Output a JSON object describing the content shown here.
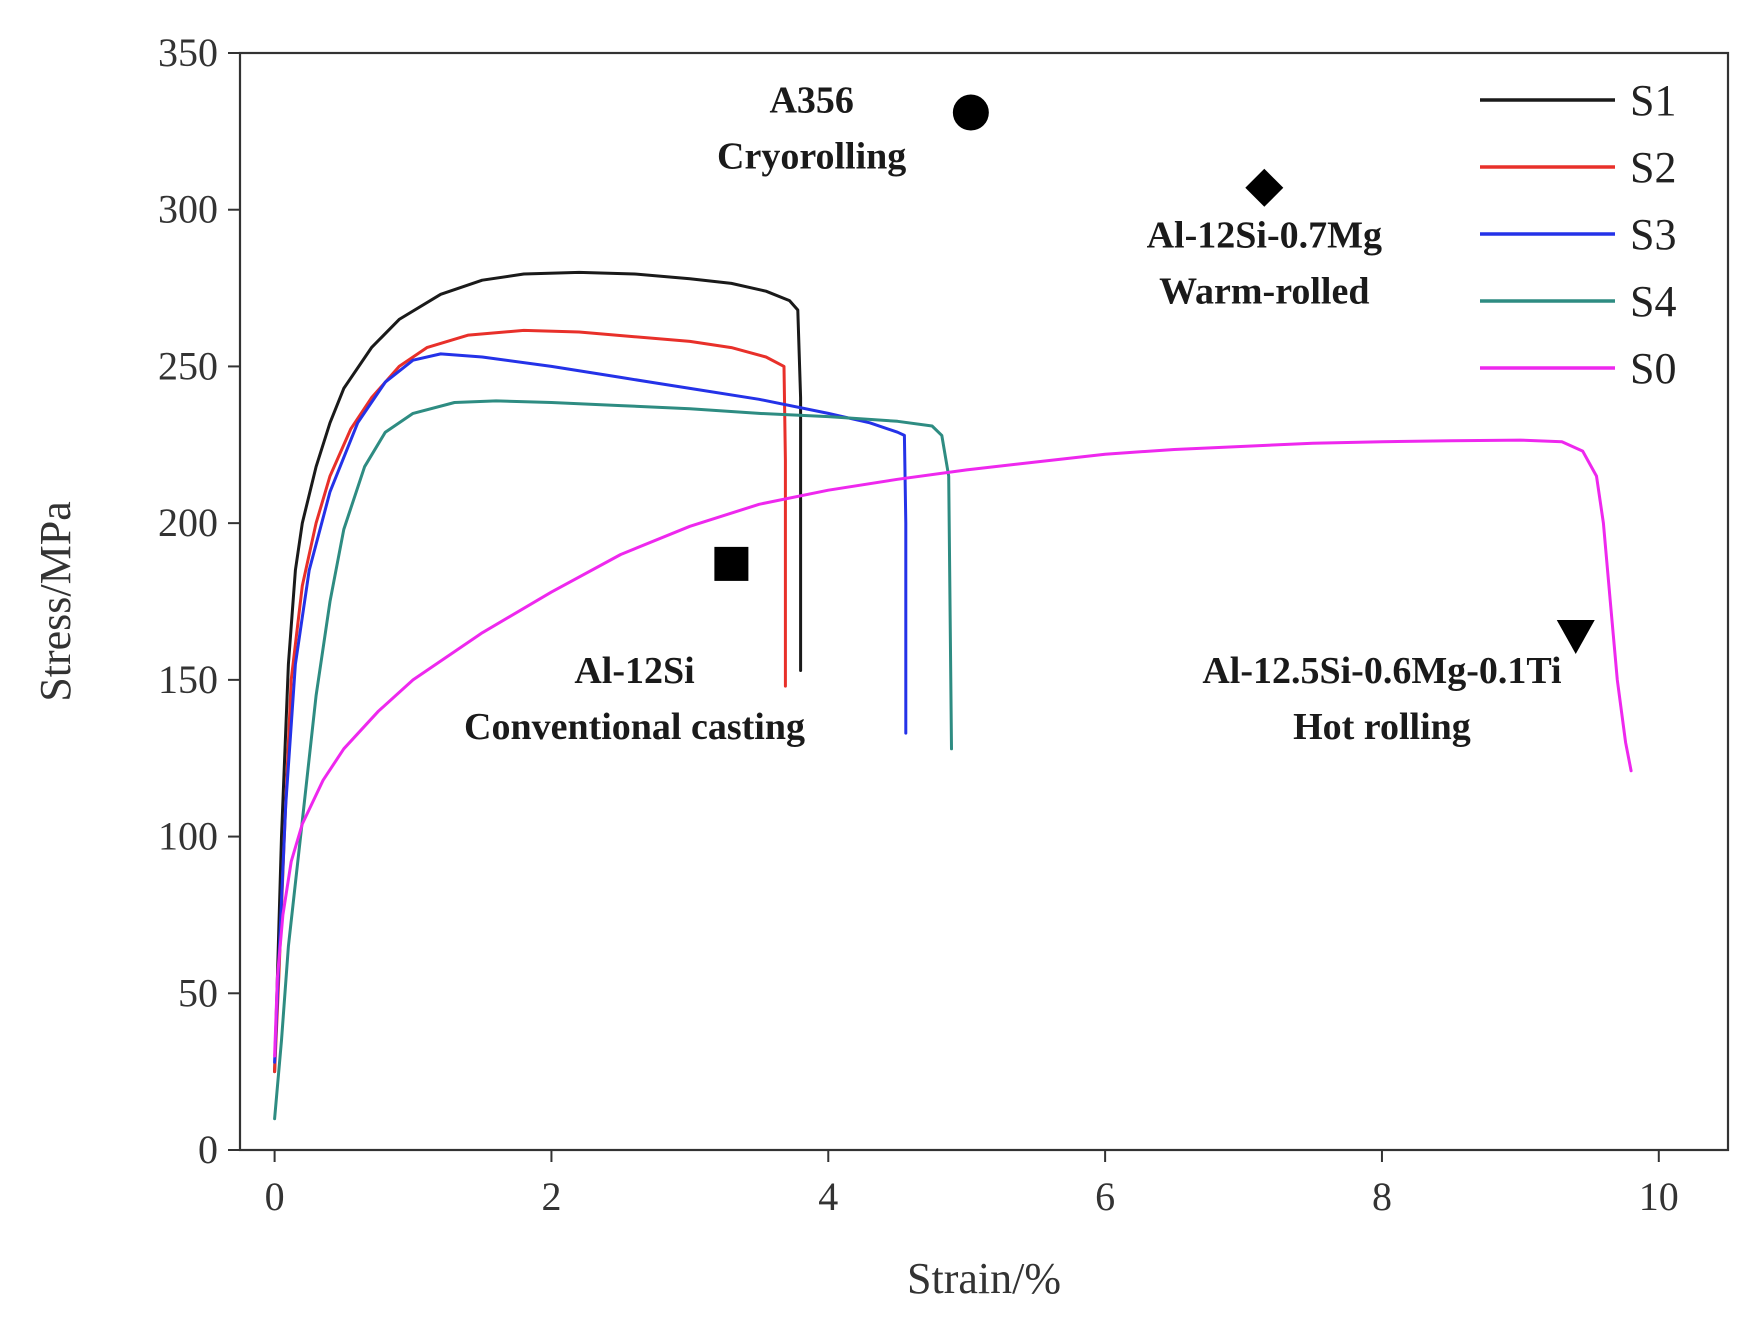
{
  "chart_data": {
    "type": "line",
    "xlabel": "Strain/%",
    "ylabel": "Stress/MPa",
    "xlim": [
      -0.25,
      10.5
    ],
    "ylim": [
      0,
      350
    ],
    "xticks": [
      0,
      2,
      4,
      6,
      8,
      10
    ],
    "yticks": [
      0,
      50,
      100,
      150,
      200,
      250,
      300,
      350
    ],
    "legend_position": "top-right",
    "series": [
      {
        "name": "S1",
        "color": "#1a1a1a",
        "points": [
          [
            0,
            25
          ],
          [
            0.02,
            55
          ],
          [
            0.05,
            100
          ],
          [
            0.1,
            155
          ],
          [
            0.15,
            185
          ],
          [
            0.2,
            200
          ],
          [
            0.3,
            218
          ],
          [
            0.4,
            232
          ],
          [
            0.5,
            243
          ],
          [
            0.7,
            256
          ],
          [
            0.9,
            265
          ],
          [
            1.2,
            273
          ],
          [
            1.5,
            277.5
          ],
          [
            1.8,
            279.5
          ],
          [
            2.2,
            280
          ],
          [
            2.6,
            279.5
          ],
          [
            3.0,
            278
          ],
          [
            3.3,
            276.5
          ],
          [
            3.55,
            274
          ],
          [
            3.72,
            271
          ],
          [
            3.78,
            268
          ],
          [
            3.8,
            240
          ],
          [
            3.8,
            153
          ]
        ]
      },
      {
        "name": "S2",
        "color": "#e8302a",
        "points": [
          [
            0,
            25
          ],
          [
            0.03,
            55
          ],
          [
            0.07,
            100
          ],
          [
            0.12,
            150
          ],
          [
            0.2,
            180
          ],
          [
            0.3,
            200
          ],
          [
            0.4,
            215
          ],
          [
            0.55,
            230
          ],
          [
            0.7,
            240
          ],
          [
            0.9,
            250
          ],
          [
            1.1,
            256
          ],
          [
            1.4,
            260
          ],
          [
            1.8,
            261.5
          ],
          [
            2.2,
            261
          ],
          [
            2.6,
            259.5
          ],
          [
            3.0,
            258
          ],
          [
            3.3,
            256
          ],
          [
            3.55,
            253
          ],
          [
            3.68,
            250
          ],
          [
            3.69,
            220
          ],
          [
            3.69,
            148
          ]
        ]
      },
      {
        "name": "S3",
        "color": "#2432e8",
        "points": [
          [
            0,
            28
          ],
          [
            0.03,
            60
          ],
          [
            0.08,
            110
          ],
          [
            0.15,
            155
          ],
          [
            0.25,
            185
          ],
          [
            0.4,
            210
          ],
          [
            0.6,
            232
          ],
          [
            0.8,
            245
          ],
          [
            1.0,
            252
          ],
          [
            1.2,
            254
          ],
          [
            1.5,
            253
          ],
          [
            2.0,
            250
          ],
          [
            2.5,
            246.5
          ],
          [
            3.0,
            243
          ],
          [
            3.5,
            239.5
          ],
          [
            4.0,
            235
          ],
          [
            4.3,
            232
          ],
          [
            4.5,
            229
          ],
          [
            4.55,
            228
          ],
          [
            4.56,
            200
          ],
          [
            4.56,
            133
          ]
        ]
      },
      {
        "name": "S4",
        "color": "#2e8c82",
        "points": [
          [
            0,
            10
          ],
          [
            0.05,
            35
          ],
          [
            0.1,
            65
          ],
          [
            0.2,
            105
          ],
          [
            0.3,
            145
          ],
          [
            0.4,
            175
          ],
          [
            0.5,
            198
          ],
          [
            0.65,
            218
          ],
          [
            0.8,
            229
          ],
          [
            1.0,
            235
          ],
          [
            1.3,
            238.5
          ],
          [
            1.6,
            239
          ],
          [
            2.0,
            238.5
          ],
          [
            2.5,
            237.5
          ],
          [
            3.0,
            236.5
          ],
          [
            3.5,
            235
          ],
          [
            4.0,
            234
          ],
          [
            4.5,
            232.5
          ],
          [
            4.75,
            231
          ],
          [
            4.82,
            228
          ],
          [
            4.87,
            215
          ],
          [
            4.89,
            128
          ]
        ]
      },
      {
        "name": "S0",
        "color": "#ee28ee",
        "points": [
          [
            0,
            30
          ],
          [
            0.02,
            55
          ],
          [
            0.06,
            75
          ],
          [
            0.12,
            92
          ],
          [
            0.2,
            104
          ],
          [
            0.35,
            118
          ],
          [
            0.5,
            128
          ],
          [
            0.75,
            140
          ],
          [
            1.0,
            150
          ],
          [
            1.5,
            165
          ],
          [
            2.0,
            178
          ],
          [
            2.5,
            190
          ],
          [
            3.0,
            199
          ],
          [
            3.5,
            206
          ],
          [
            4.0,
            210.5
          ],
          [
            4.5,
            214
          ],
          [
            5.0,
            217
          ],
          [
            5.5,
            219.5
          ],
          [
            6.0,
            222
          ],
          [
            6.5,
            223.5
          ],
          [
            7.0,
            224.5
          ],
          [
            7.5,
            225.5
          ],
          [
            8.0,
            226
          ],
          [
            8.5,
            226.3
          ],
          [
            9.0,
            226.5
          ],
          [
            9.3,
            226
          ],
          [
            9.45,
            223
          ],
          [
            9.55,
            215
          ],
          [
            9.6,
            200
          ],
          [
            9.65,
            175
          ],
          [
            9.7,
            150
          ],
          [
            9.76,
            130
          ],
          [
            9.8,
            121
          ]
        ]
      }
    ],
    "annotations": [
      {
        "lines": [
          "A356",
          "Cryorolling"
        ],
        "marker": "circle",
        "x": 5.03,
        "y": 331,
        "text_x": 3.88,
        "text_y": 331
      },
      {
        "lines": [
          "Al-12Si-0.7Mg",
          "Warm-rolled"
        ],
        "marker": "diamond",
        "x": 7.15,
        "y": 307,
        "text_x": 7.15,
        "text_y": 288
      },
      {
        "lines": [
          "Al-12Si",
          "Conventional casting"
        ],
        "marker": "square",
        "x": 3.3,
        "y": 187,
        "text_x": 2.6,
        "text_y": 149
      },
      {
        "lines": [
          "Al-12.5Si-0.6Mg-0.1Ti",
          "Hot rolling"
        ],
        "marker": "triangle-down",
        "x": 9.4,
        "y": 164,
        "text_x": 8.0,
        "text_y": 149
      }
    ]
  }
}
